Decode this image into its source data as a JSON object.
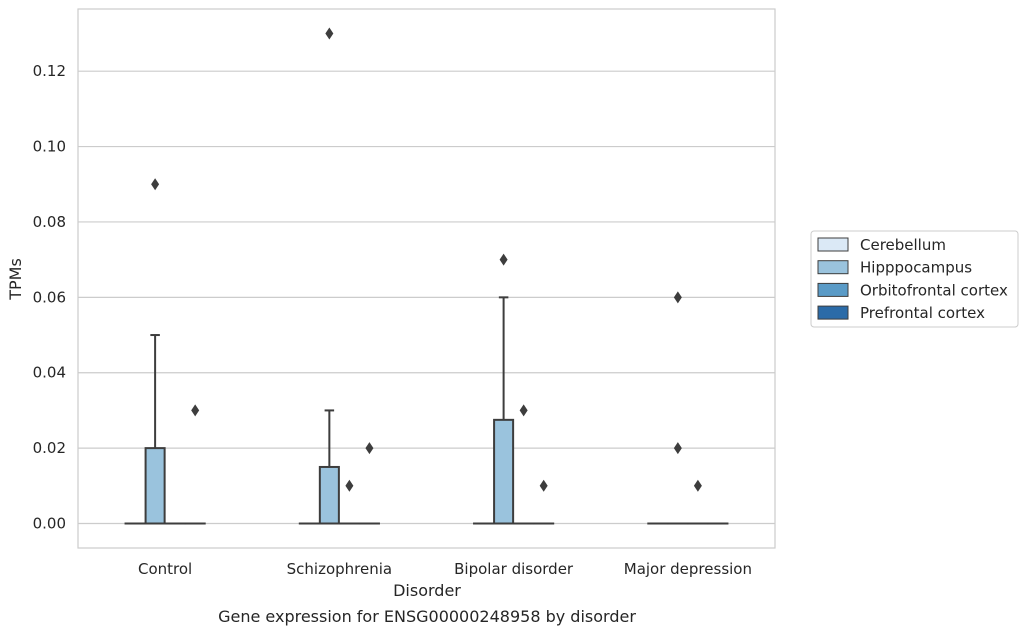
{
  "chart_data": {
    "type": "boxplot",
    "title": "",
    "caption": "Gene expression for ENSG00000248958 by disorder",
    "xlabel": "Disorder",
    "ylabel": "TPMs",
    "ylim": [
      -0.0065,
      0.1365
    ],
    "yticks": [
      0.0,
      0.02,
      0.04,
      0.06,
      0.08,
      0.1,
      0.12
    ],
    "ytick_labels": [
      "0.00",
      "0.02",
      "0.04",
      "0.06",
      "0.08",
      "0.10",
      "0.12"
    ],
    "grid": "horizontal",
    "legend_placement": "right",
    "categories": [
      "Control",
      "Schizophrenia",
      "Bipolar disorder",
      "Major depression"
    ],
    "series": [
      {
        "name": "Cerebellum",
        "color": "#dbe9f6",
        "boxes": [
          {
            "q1": 0,
            "median": 0,
            "q3": 0,
            "whislo": 0,
            "whishi": 0,
            "fliers": []
          },
          {
            "q1": 0,
            "median": 0,
            "q3": 0,
            "whislo": 0,
            "whishi": 0,
            "fliers": []
          },
          {
            "q1": 0,
            "median": 0,
            "q3": 0,
            "whislo": 0,
            "whishi": 0,
            "fliers": []
          },
          {
            "q1": 0,
            "median": 0,
            "q3": 0,
            "whislo": 0,
            "whishi": 0,
            "fliers": []
          }
        ]
      },
      {
        "name": "Hipppocampus",
        "color": "#9ac3dd",
        "boxes": [
          {
            "q1": 0,
            "median": 0,
            "q3": 0.02,
            "whislo": 0,
            "whishi": 0.05,
            "fliers": [
              0.09
            ]
          },
          {
            "q1": 0,
            "median": 0,
            "q3": 0.015,
            "whislo": 0,
            "whishi": 0.03,
            "fliers": [
              0.13
            ]
          },
          {
            "q1": 0,
            "median": 0,
            "q3": 0.0275,
            "whislo": 0,
            "whishi": 0.06,
            "fliers": [
              0.07
            ]
          },
          {
            "q1": 0,
            "median": 0,
            "q3": 0,
            "whislo": 0,
            "whishi": 0,
            "fliers": [
              0.06,
              0.02
            ]
          }
        ]
      },
      {
        "name": "Orbitofrontal cortex",
        "color": "#5a9bc7",
        "boxes": [
          {
            "q1": 0,
            "median": 0,
            "q3": 0,
            "whislo": 0,
            "whishi": 0,
            "fliers": []
          },
          {
            "q1": 0,
            "median": 0,
            "q3": 0,
            "whislo": 0,
            "whishi": 0,
            "fliers": [
              0.01
            ]
          },
          {
            "q1": 0,
            "median": 0,
            "q3": 0,
            "whislo": 0,
            "whishi": 0,
            "fliers": [
              0.03
            ]
          },
          {
            "q1": 0,
            "median": 0,
            "q3": 0,
            "whislo": 0,
            "whishi": 0,
            "fliers": [
              0.01
            ]
          }
        ]
      },
      {
        "name": "Prefrontal cortex",
        "color": "#2b6ba8",
        "boxes": [
          {
            "q1": 0,
            "median": 0,
            "q3": 0,
            "whislo": 0,
            "whishi": 0,
            "fliers": [
              0.03
            ]
          },
          {
            "q1": 0,
            "median": 0,
            "q3": 0,
            "whislo": 0,
            "whishi": 0,
            "fliers": [
              0.02
            ]
          },
          {
            "q1": 0,
            "median": 0,
            "q3": 0,
            "whislo": 0,
            "whishi": 0,
            "fliers": [
              0.01
            ]
          },
          {
            "q1": 0,
            "median": 0,
            "q3": 0,
            "whislo": 0,
            "whishi": 0,
            "fliers": []
          }
        ]
      }
    ]
  }
}
